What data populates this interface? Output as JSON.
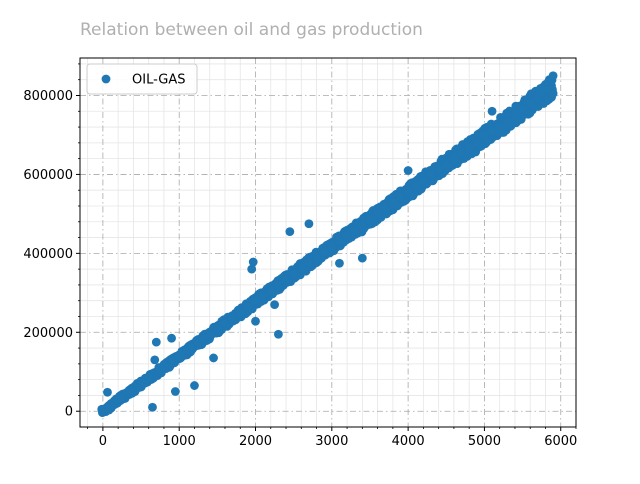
{
  "chart_data": {
    "type": "scatter",
    "title": "Relation between oil and gas production",
    "xlabel": "",
    "ylabel": "",
    "xlim": [
      -300,
      6200
    ],
    "ylim": [
      -40000,
      895000
    ],
    "xticks": [
      0,
      1000,
      2000,
      3000,
      4000,
      5000,
      6000
    ],
    "yticks": [
      0,
      200000,
      400000,
      600000,
      800000
    ],
    "grid": true,
    "legend_position": "top-left",
    "series": [
      {
        "name": "OIL-GAS",
        "color": "#1f77b4",
        "trend": {
          "slope": 139,
          "intercept": 0,
          "x_min": 0,
          "x_max": 5900
        },
        "points": [
          {
            "x": 0,
            "y": 0
          },
          {
            "x": 30,
            "y": 5000
          },
          {
            "x": 60,
            "y": 48000
          },
          {
            "x": 80,
            "y": 3000
          },
          {
            "x": 100,
            "y": 12000
          },
          {
            "x": 150,
            "y": 20000
          },
          {
            "x": 200,
            "y": 30000
          },
          {
            "x": 250,
            "y": 35000
          },
          {
            "x": 300,
            "y": 45000
          },
          {
            "x": 350,
            "y": 50000
          },
          {
            "x": 400,
            "y": 60000
          },
          {
            "x": 450,
            "y": 65000
          },
          {
            "x": 500,
            "y": 70000
          },
          {
            "x": 560,
            "y": 80000
          },
          {
            "x": 600,
            "y": 85000
          },
          {
            "x": 650,
            "y": 10000
          },
          {
            "x": 680,
            "y": 130000
          },
          {
            "x": 700,
            "y": 175000
          },
          {
            "x": 750,
            "y": 105000
          },
          {
            "x": 800,
            "y": 112000
          },
          {
            "x": 850,
            "y": 120000
          },
          {
            "x": 900,
            "y": 125000
          },
          {
            "x": 900,
            "y": 185000
          },
          {
            "x": 950,
            "y": 50000
          },
          {
            "x": 1000,
            "y": 140000
          },
          {
            "x": 1050,
            "y": 148000
          },
          {
            "x": 1100,
            "y": 155000
          },
          {
            "x": 1150,
            "y": 160000
          },
          {
            "x": 1200,
            "y": 65000
          },
          {
            "x": 1250,
            "y": 175000
          },
          {
            "x": 1300,
            "y": 182000
          },
          {
            "x": 1350,
            "y": 190000
          },
          {
            "x": 1400,
            "y": 195000
          },
          {
            "x": 1450,
            "y": 135000
          },
          {
            "x": 1500,
            "y": 210000
          },
          {
            "x": 1600,
            "y": 222000
          },
          {
            "x": 1700,
            "y": 235000
          },
          {
            "x": 1800,
            "y": 250000
          },
          {
            "x": 1900,
            "y": 265000
          },
          {
            "x": 1950,
            "y": 360000
          },
          {
            "x": 1970,
            "y": 378000
          },
          {
            "x": 2000,
            "y": 228000
          },
          {
            "x": 2000,
            "y": 280000
          },
          {
            "x": 2100,
            "y": 292000
          },
          {
            "x": 2200,
            "y": 305000
          },
          {
            "x": 2250,
            "y": 270000
          },
          {
            "x": 2300,
            "y": 195000
          },
          {
            "x": 2300,
            "y": 318000
          },
          {
            "x": 2400,
            "y": 333000
          },
          {
            "x": 2450,
            "y": 455000
          },
          {
            "x": 2500,
            "y": 348000
          },
          {
            "x": 2600,
            "y": 362000
          },
          {
            "x": 2700,
            "y": 375000
          },
          {
            "x": 2700,
            "y": 475000
          },
          {
            "x": 2800,
            "y": 390000
          },
          {
            "x": 2900,
            "y": 403000
          },
          {
            "x": 3000,
            "y": 417000
          },
          {
            "x": 3100,
            "y": 375000
          },
          {
            "x": 3100,
            "y": 430000
          },
          {
            "x": 3200,
            "y": 445000
          },
          {
            "x": 3300,
            "y": 458000
          },
          {
            "x": 3400,
            "y": 388000
          },
          {
            "x": 3400,
            "y": 472000
          },
          {
            "x": 3500,
            "y": 487000
          },
          {
            "x": 3600,
            "y": 500000
          },
          {
            "x": 3700,
            "y": 515000
          },
          {
            "x": 3800,
            "y": 530000
          },
          {
            "x": 3900,
            "y": 543000
          },
          {
            "x": 4000,
            "y": 560000
          },
          {
            "x": 4000,
            "y": 610000
          },
          {
            "x": 4100,
            "y": 572000
          },
          {
            "x": 4200,
            "y": 585000
          },
          {
            "x": 4300,
            "y": 598000
          },
          {
            "x": 4400,
            "y": 612000
          },
          {
            "x": 4500,
            "y": 625000
          },
          {
            "x": 4600,
            "y": 640000
          },
          {
            "x": 4700,
            "y": 655000
          },
          {
            "x": 4800,
            "y": 668000
          },
          {
            "x": 4900,
            "y": 680000
          },
          {
            "x": 5000,
            "y": 695000
          },
          {
            "x": 5100,
            "y": 760000
          },
          {
            "x": 5100,
            "y": 710000
          },
          {
            "x": 5200,
            "y": 722000
          },
          {
            "x": 5300,
            "y": 735000
          },
          {
            "x": 5400,
            "y": 750000
          },
          {
            "x": 5500,
            "y": 765000
          },
          {
            "x": 5600,
            "y": 780000
          },
          {
            "x": 5700,
            "y": 793000
          },
          {
            "x": 5800,
            "y": 815000
          },
          {
            "x": 5850,
            "y": 840000
          },
          {
            "x": 5900,
            "y": 850000
          },
          {
            "x": 5900,
            "y": 805000
          }
        ]
      }
    ]
  }
}
